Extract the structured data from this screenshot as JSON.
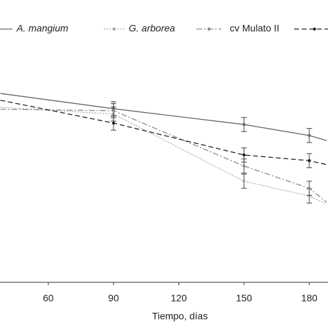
{
  "chart_data": {
    "type": "line",
    "x_label": "Tiempo, días",
    "x": [
      38,
      90,
      150,
      180,
      188
    ],
    "xlim": [
      37.8,
      188.6
    ],
    "xticks": [
      60,
      90,
      120,
      150,
      180
    ],
    "ylim": [
      0,
      100
    ],
    "series": [
      {
        "name": "A. mangium",
        "color": "#666666",
        "dash": "",
        "values": [
          66.9,
          61.5,
          55.9,
          52.0,
          50.2
        ],
        "errors": [
          null,
          2.5,
          2.5,
          2.5,
          null
        ]
      },
      {
        "name": "G. arborea",
        "color": "#aaaaaa",
        "dash": "2 2",
        "values": [
          62.0,
          59.6,
          35.8,
          30.6,
          27.7
        ],
        "errors": [
          null,
          2.5,
          2.5,
          2.5,
          null
        ]
      },
      {
        "name": "cv Mulato II",
        "color": "#888888",
        "dash": "8 3 2 3",
        "values": [
          61.3,
          60.8,
          41.2,
          33.3,
          28.4
        ],
        "errors": [
          null,
          2.5,
          2.5,
          2.5,
          null
        ]
      },
      {
        "name": null,
        "color": "#222222",
        "dash": "7 4",
        "values": [
          64.5,
          56.4,
          45.1,
          43.1,
          41.7
        ],
        "errors": [
          null,
          2.5,
          2.5,
          2.5,
          null
        ]
      }
    ]
  }
}
